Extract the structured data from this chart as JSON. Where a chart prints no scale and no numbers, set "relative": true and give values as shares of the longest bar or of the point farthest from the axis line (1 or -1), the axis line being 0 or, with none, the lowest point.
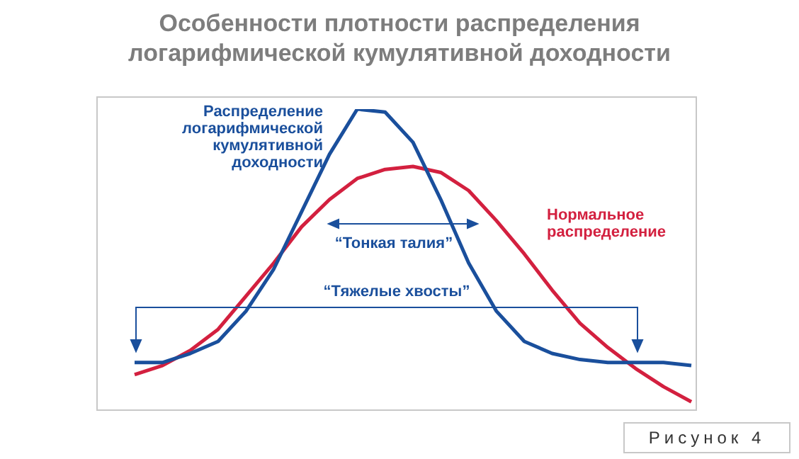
{
  "chart_data": {
    "type": "line",
    "title": "Особенности плотности распределения\nлогарифмической кумулятивной доходности",
    "relative": true,
    "legend": false,
    "marker": "none",
    "line_style": "solid",
    "tick_labels": false,
    "categories": [
      null,
      null,
      null,
      null,
      null,
      null,
      null,
      null,
      null,
      null,
      null,
      null,
      null,
      null,
      null,
      null,
      null,
      null,
      null,
      null,
      null
    ],
    "series": [
      {
        "name": "Распределение\nлогарифмической\nкумулятивной\nдоходности",
        "color": "#1a4f9c",
        "values": [
          0.16,
          0.16,
          0.19,
          0.23,
          0.33,
          0.47,
          0.66,
          0.85,
          1.0,
          0.99,
          0.89,
          0.7,
          0.49,
          0.33,
          0.23,
          0.19,
          0.17,
          0.16,
          0.16,
          0.16,
          0.15
        ]
      },
      {
        "name": "Нормальное\nраспределение",
        "color": "#d3203f",
        "values": [
          0.12,
          0.15,
          0.2,
          0.27,
          0.38,
          0.49,
          0.61,
          0.7,
          0.77,
          0.8,
          0.81,
          0.79,
          0.73,
          0.63,
          0.52,
          0.4,
          0.29,
          0.21,
          0.14,
          0.08,
          0.03
        ]
      }
    ],
    "annotations": [
      "“Тонкая талия”",
      "“Тяжелые хвосты”",
      "Рисунок 4"
    ]
  }
}
